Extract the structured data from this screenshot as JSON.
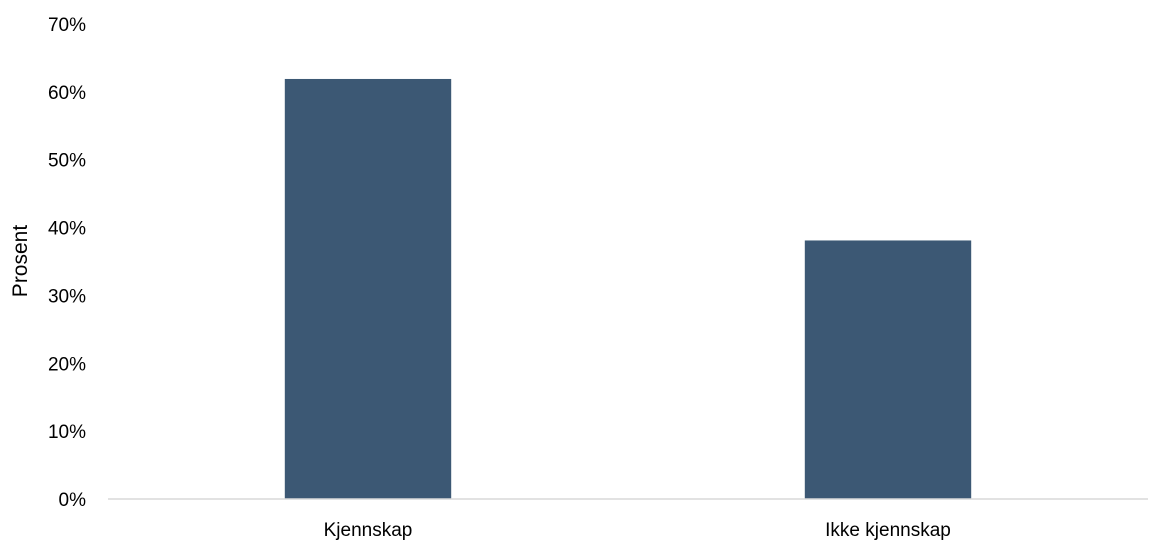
{
  "chart_data": {
    "type": "bar",
    "title": "",
    "xlabel": "",
    "ylabel": "Prosent",
    "categories": [
      "Kjennskap",
      "Ikke kjennskap"
    ],
    "values": [
      0.619,
      0.381
    ],
    "ylim": [
      0,
      0.7
    ],
    "yticks": [
      0,
      0.1,
      0.2,
      0.3,
      0.4,
      0.5,
      0.6,
      0.7
    ],
    "ytick_labels": [
      "0%",
      "10%",
      "20%",
      "30%",
      "40%",
      "50%",
      "60%",
      "70%"
    ],
    "grid": false,
    "legend": "none",
    "colors": {
      "bar": "#3c5874",
      "axis": "#d9d9d9"
    }
  }
}
